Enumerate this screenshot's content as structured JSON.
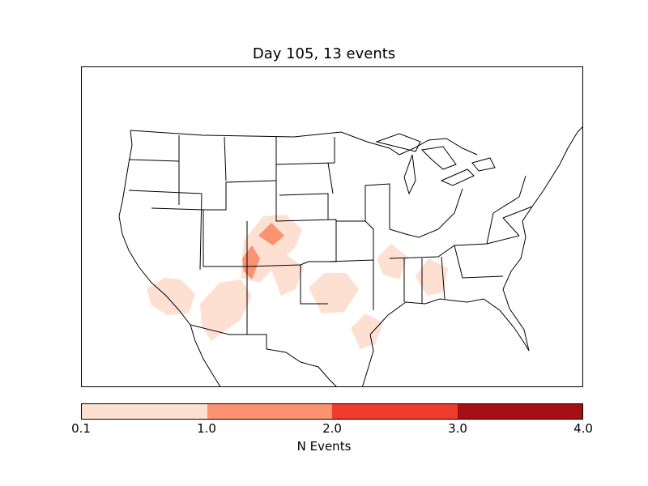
{
  "title": "Day 105, 13 events",
  "colorbar": {
    "label": "N Events",
    "ticks": [
      "0.1",
      "1.0",
      "2.0",
      "3.0",
      "4.0"
    ],
    "colors": [
      "#fee0d2",
      "#fc9272",
      "#ef3b2c",
      "#a50f15"
    ]
  },
  "map": {
    "region": "North America (CONUS)",
    "boundaries": [
      "coastlines",
      "country borders",
      "state borders"
    ]
  }
}
